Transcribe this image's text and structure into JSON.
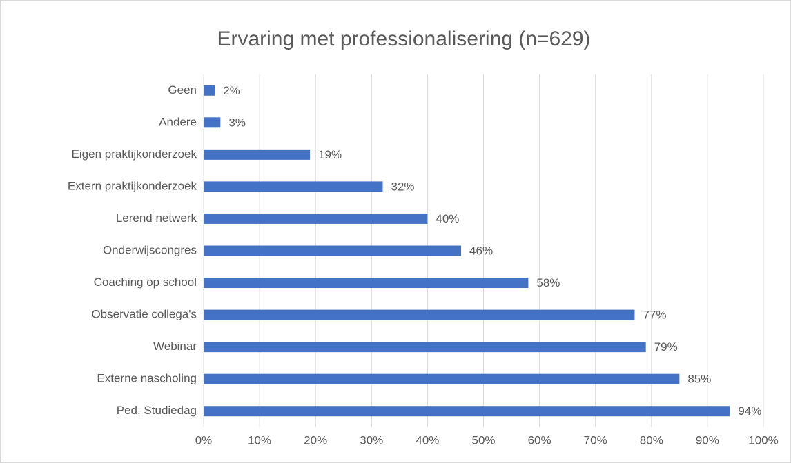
{
  "chart_data": {
    "type": "bar",
    "orientation": "horizontal",
    "title": "Ervaring met professionalisering (n=629)",
    "categories": [
      "Geen",
      "Andere",
      "Eigen praktijkonderzoek",
      "Extern praktijkonderzoek",
      "Lerend netwerk",
      "Onderwijscongres",
      "Coaching op school",
      "Observatie collega's",
      "Webinar",
      "Externe nascholing",
      "Ped. Studiedag"
    ],
    "values": [
      2,
      3,
      19,
      32,
      40,
      46,
      58,
      77,
      79,
      85,
      94
    ],
    "value_labels": [
      "2%",
      "3%",
      "19%",
      "32%",
      "40%",
      "46%",
      "58%",
      "77%",
      "79%",
      "85%",
      "94%"
    ],
    "color": "#4472c4",
    "xlim": [
      0,
      100
    ],
    "xticks": [
      {
        "value": 0,
        "label": "0%"
      },
      {
        "value": 10,
        "label": "10%"
      },
      {
        "value": 20,
        "label": "20%"
      },
      {
        "value": 30,
        "label": "30%"
      },
      {
        "value": 40,
        "label": "40%"
      },
      {
        "value": 50,
        "label": "50%"
      },
      {
        "value": 60,
        "label": "60%"
      },
      {
        "value": 70,
        "label": "70%"
      },
      {
        "value": 80,
        "label": "80%"
      },
      {
        "value": 90,
        "label": "90%"
      },
      {
        "value": 100,
        "label": "100%"
      }
    ],
    "grid": true
  }
}
